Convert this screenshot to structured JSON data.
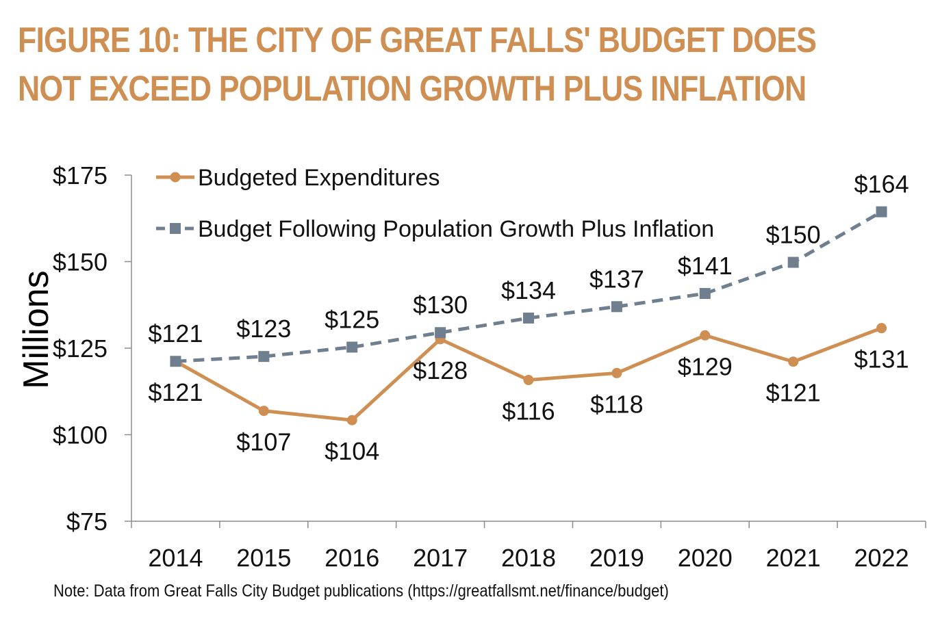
{
  "title_line1": "FIGURE 10: THE CITY OF GREAT FALLS' BUDGET DOES",
  "title_line2": "NOT EXCEED POPULATION GROWTH PLUS INFLATION",
  "note": "Note: Data from Great Falls City Budget publications (https://greatfallsmt.net/finance/budget)",
  "colors": {
    "title": "#D08F52",
    "budgeted": "#D08F52",
    "population_inflation": "#6F7F8F",
    "axis": "#8C8C8C",
    "text": "#111111"
  },
  "chart_data": {
    "type": "line",
    "title": "",
    "xlabel": "",
    "ylabel": "Millions",
    "categories": [
      "2014",
      "2015",
      "2016",
      "2017",
      "2018",
      "2019",
      "2020",
      "2021",
      "2022"
    ],
    "ylim": [
      75,
      175
    ],
    "yticks": [
      75,
      100,
      125,
      150,
      175
    ],
    "ytick_labels": [
      "$75",
      "$100",
      "$125",
      "$150",
      "$175"
    ],
    "grid": false,
    "legend_position": "top-left",
    "series": [
      {
        "name": "Budgeted Expenditures",
        "values": [
          121.2,
          106.9,
          104.2,
          127.6,
          115.8,
          117.8,
          128.7,
          121.1,
          130.8
        ],
        "labels": [
          "$121",
          "$107",
          "$104",
          "$128",
          "$116",
          "$118",
          "$129",
          "$121",
          "$131"
        ],
        "marker": "circle",
        "line_style": "solid",
        "color": "#D08F52"
      },
      {
        "name": "Budget Following Population Growth Plus Inflation",
        "values": [
          121.2,
          122.6,
          125.3,
          129.5,
          133.7,
          137.0,
          140.8,
          149.8,
          164.4
        ],
        "labels": [
          "$121",
          "$123",
          "$125",
          "$130",
          "$134",
          "$137",
          "$141",
          "$150",
          "$164"
        ],
        "marker": "square",
        "line_style": "dashed",
        "color": "#6F7F8F"
      }
    ]
  }
}
